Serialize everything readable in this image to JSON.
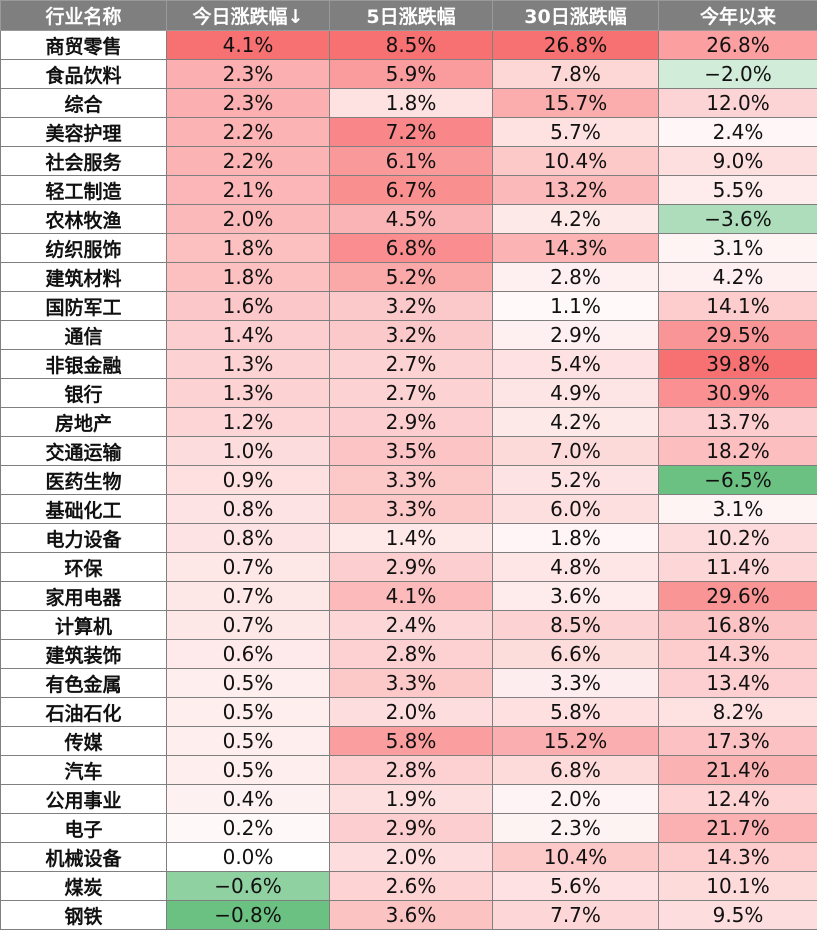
{
  "table": {
    "headers": [
      "行业名称",
      "今日涨跌幅↓",
      "5日涨跌幅",
      "30日涨跌幅",
      "今年以来"
    ],
    "rows": [
      [
        "商贸零售",
        "4.1%",
        "8.5%",
        "26.8%",
        "26.8%"
      ],
      [
        "食品饮料",
        "2.3%",
        "5.9%",
        "7.8%",
        "−2.0%"
      ],
      [
        "综合",
        "2.3%",
        "1.8%",
        "15.7%",
        "12.0%"
      ],
      [
        "美容护理",
        "2.2%",
        "7.2%",
        "5.7%",
        "2.4%"
      ],
      [
        "社会服务",
        "2.2%",
        "6.1%",
        "10.4%",
        "9.0%"
      ],
      [
        "轻工制造",
        "2.1%",
        "6.7%",
        "13.2%",
        "5.5%"
      ],
      [
        "农林牧渔",
        "2.0%",
        "4.5%",
        "4.2%",
        "−3.6%"
      ],
      [
        "纺织服饰",
        "1.8%",
        "6.8%",
        "14.3%",
        "3.1%"
      ],
      [
        "建筑材料",
        "1.8%",
        "5.2%",
        "2.8%",
        "4.2%"
      ],
      [
        "国防军工",
        "1.6%",
        "3.2%",
        "1.1%",
        "14.1%"
      ],
      [
        "通信",
        "1.4%",
        "3.2%",
        "2.9%",
        "29.5%"
      ],
      [
        "非银金融",
        "1.3%",
        "2.7%",
        "5.4%",
        "39.8%"
      ],
      [
        "银行",
        "1.3%",
        "2.7%",
        "4.9%",
        "30.9%"
      ],
      [
        "房地产",
        "1.2%",
        "2.9%",
        "4.2%",
        "13.7%"
      ],
      [
        "交通运输",
        "1.0%",
        "3.5%",
        "7.0%",
        "18.2%"
      ],
      [
        "医药生物",
        "0.9%",
        "3.3%",
        "5.2%",
        "−6.5%"
      ],
      [
        "基础化工",
        "0.8%",
        "3.3%",
        "6.0%",
        "3.1%"
      ],
      [
        "电力设备",
        "0.8%",
        "1.4%",
        "1.8%",
        "10.2%"
      ],
      [
        "环保",
        "0.7%",
        "2.9%",
        "4.8%",
        "11.4%"
      ],
      [
        "家用电器",
        "0.7%",
        "4.1%",
        "3.6%",
        "29.6%"
      ],
      [
        "计算机",
        "0.7%",
        "2.4%",
        "8.5%",
        "16.8%"
      ],
      [
        "建筑装饰",
        "0.6%",
        "2.8%",
        "6.6%",
        "14.3%"
      ],
      [
        "有色金属",
        "0.5%",
        "3.3%",
        "3.3%",
        "13.4%"
      ],
      [
        "石油石化",
        "0.5%",
        "2.0%",
        "5.8%",
        "8.2%"
      ],
      [
        "传媒",
        "0.5%",
        "5.8%",
        "15.2%",
        "17.3%"
      ],
      [
        "汽车",
        "0.5%",
        "2.8%",
        "6.8%",
        "21.4%"
      ],
      [
        "公用事业",
        "0.4%",
        "1.9%",
        "2.0%",
        "12.4%"
      ],
      [
        "电子",
        "0.2%",
        "2.9%",
        "2.3%",
        "21.7%"
      ],
      [
        "机械设备",
        "0.0%",
        "2.0%",
        "10.4%",
        "14.3%"
      ],
      [
        "煤炭",
        "−0.6%",
        "2.6%",
        "5.6%",
        "10.1%"
      ],
      [
        "钢铁",
        "−0.8%",
        "3.6%",
        "7.7%",
        "9.5%"
      ]
    ]
  },
  "colors": {
    "header_bg": "#7f7f7f",
    "header_text": "#ffffff",
    "positive_max": "#f8696b",
    "negative_max": "#63be7b",
    "neutral": "#ffffff"
  }
}
